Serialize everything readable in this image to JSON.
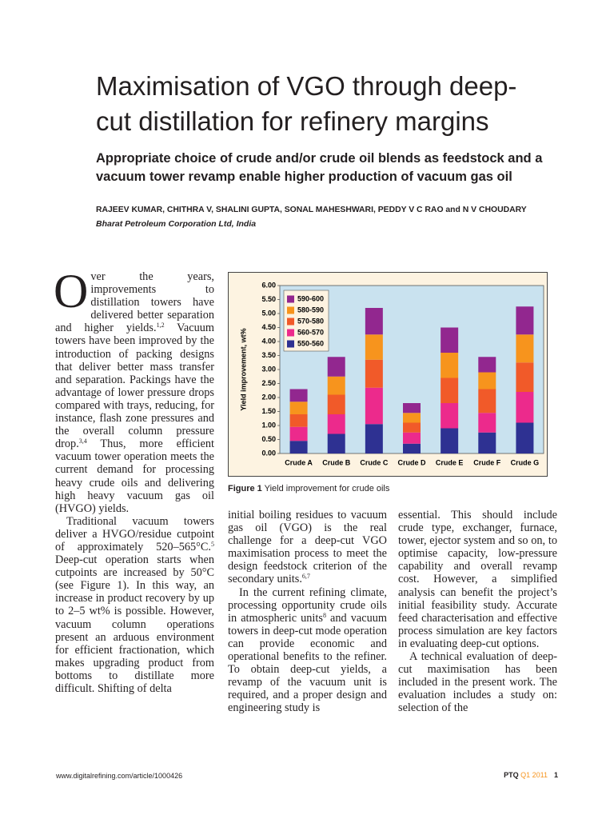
{
  "header": {
    "title_lines": [
      "Maximisation of VGO through deep-",
      "cut distillation for refinery margins"
    ],
    "subtitle_lines": [
      "Appropriate choice of crude and/or crude oil blends as feedstock and a",
      "vacuum tower revamp enable higher production of vacuum gas oil"
    ],
    "authors": "RAJEEV KUMAR, CHITHRA V, SHALINI GUPTA, SONAL MAHESHWARI, PEDDY V C RAO and N V CHOUDARY",
    "affiliation": "Bharat Petroleum Corporation Ltd, India"
  },
  "body": {
    "columns": [
      {
        "paragraphs": [
          {
            "drop_cap": "O",
            "parts": [
              "ver the years, improvements to distillation towers have delivered better separation and higher yields.",
              {
                "sup": "1,2"
              },
              " Vacuum towers have been improved by the introduction of packing designs that deliver better mass transfer and separation. Packings have the advantage of lower pressure drops compared with trays, reducing, for instance, flash zone pressures and the overall column pressure drop.",
              {
                "sup": "3,4"
              },
              " Thus, more efficient vacuum tower operation meets the current demand for processing heavy crude oils and delivering high heavy vacuum gas oil (HVGO) yields."
            ]
          },
          {
            "parts": [
              "Traditional vacuum towers deliver a HVGO/residue cutpoint of approximately 520–565°C.",
              {
                "sup": "5"
              },
              " Deep-cut operation starts when cutpoints are increased by 50°C (see Figure 1). In this way, an increase in product recovery by up to 2–5 wt% is possible. However, vacuum column operations present an arduous environment for efficient fractionation, which makes upgrading product from bottoms to distillate more difficult. Shifting of delta"
            ]
          }
        ]
      },
      {
        "paragraphs": [
          {
            "parts": [
              "initial boiling residues to vacuum gas oil (VGO) is the real challenge for a deep-cut VGO maximisation process to meet the design feedstock criterion of the secondary units.",
              {
                "sup": "6,7"
              }
            ]
          },
          {
            "parts": [
              "In the current refining climate, processing opportunity crude oils in atmospheric units",
              {
                "sup": "8"
              },
              " and vacuum towers in deep-cut mode operation can provide economic and operational benefits to the refiner. To obtain deep-cut yields, a revamp of the vacuum unit is required, and a proper design and engineering study is"
            ]
          }
        ]
      },
      {
        "paragraphs": [
          {
            "parts": [
              "essential. This should include crude type, exchanger, furnace, tower, ejector system and so on, to optimise capacity, low-pressure capability and overall revamp cost. However, a simplified analysis can benefit the project’s initial feasibility study. Accurate feed characterisation and effective process simulation are key factors in evaluating deep-cut options."
            ]
          },
          {
            "parts": [
              "A technical evaluation of deep-cut maximisation has been included in the present work. The evaluation includes a study on: selection of the"
            ]
          }
        ]
      }
    ]
  },
  "figure": {
    "label": "Figure 1",
    "caption": "Yield improvement for crude oils"
  },
  "chart_data": {
    "type": "stacked_bar",
    "y_label": "Yield improvement, wt%",
    "categories": [
      "Crude A",
      "Crude B",
      "Crude C",
      "Crude D",
      "Crude E",
      "Crude F",
      "Crude G"
    ],
    "series": [
      {
        "name": "550-560",
        "color": "#2e3192",
        "values": [
          0.45,
          0.7,
          1.05,
          0.35,
          0.9,
          0.75,
          1.1
        ]
      },
      {
        "name": "560-570",
        "color": "#ec2a8c",
        "values": [
          0.5,
          0.7,
          1.3,
          0.4,
          0.9,
          0.7,
          1.1
        ]
      },
      {
        "name": "570-580",
        "color": "#f15a29",
        "values": [
          0.45,
          0.7,
          1.0,
          0.35,
          0.9,
          0.85,
          1.05
        ]
      },
      {
        "name": "580-590",
        "color": "#f7941d",
        "values": [
          0.45,
          0.65,
          0.9,
          0.35,
          0.9,
          0.6,
          1.0
        ]
      },
      {
        "name": "590-600",
        "color": "#92278f",
        "values": [
          0.45,
          0.7,
          0.95,
          0.35,
          0.9,
          0.55,
          1.0
        ]
      }
    ],
    "ylim": [
      0,
      6
    ],
    "yticks": [
      {
        "value": 0,
        "label": "0.00"
      },
      {
        "value": 0.5,
        "label": "0.50"
      },
      {
        "value": 1,
        "label": "1.00"
      },
      {
        "value": 1.5,
        "label": "1.50"
      },
      {
        "value": 2,
        "label": "2.00"
      },
      {
        "value": 2.5,
        "label": "2.50"
      },
      {
        "value": 3,
        "label": "3.00"
      },
      {
        "value": 3.5,
        "label": "3.50"
      },
      {
        "value": 4,
        "label": "4.00"
      },
      {
        "value": 4.5,
        "label": "4.50"
      },
      {
        "value": 5,
        "label": "5.00"
      },
      {
        "value": 5.5,
        "label": "5.50"
      },
      {
        "value": 6,
        "label": "6.00"
      }
    ],
    "legend": "upper left"
  },
  "footer": {
    "url": "www.digitalrefining.com/article/1000426",
    "journal": "PTQ",
    "issue": "Q1 2011",
    "page": "1"
  }
}
